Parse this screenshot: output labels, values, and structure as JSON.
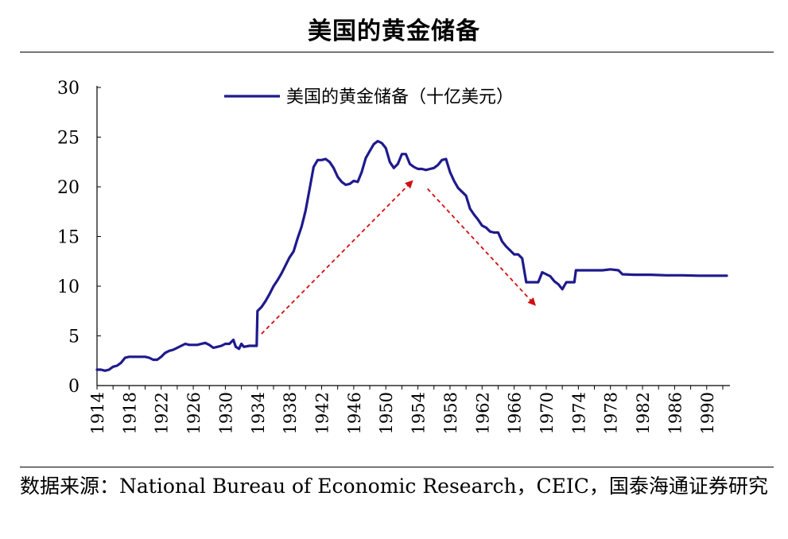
{
  "title": "美国的黄金储备",
  "source": "数据来源：National Bureau of Economic Research，CEIC，国泰海通证券研究",
  "chart_data": {
    "type": "line",
    "title": "美国的黄金储备",
    "xlabel": "",
    "ylabel": "",
    "xlim": [
      1914,
      1992.5
    ],
    "ylim": [
      0,
      30
    ],
    "y_ticks": [
      "0",
      "5",
      "10",
      "15",
      "20",
      "25",
      "30"
    ],
    "x_ticks": [
      "1914",
      "1918",
      "1922",
      "1926",
      "1930",
      "1934",
      "1938",
      "1942",
      "1946",
      "1950",
      "1954",
      "1958",
      "1962",
      "1966",
      "1970",
      "1974",
      "1978",
      "1982",
      "1986",
      "1990"
    ],
    "grid": false,
    "legend_position": "top-center",
    "colors": {
      "series": "#1f1a8c",
      "arrow": "#d01010"
    },
    "series": [
      {
        "name": "美国的黄金储备（十亿美元）",
        "points": [
          [
            1914,
            1.6
          ],
          [
            1914.5,
            1.6
          ],
          [
            1915,
            1.5
          ],
          [
            1915.5,
            1.6
          ],
          [
            1916,
            1.9
          ],
          [
            1916.5,
            2.0
          ],
          [
            1917,
            2.3
          ],
          [
            1917.5,
            2.8
          ],
          [
            1918,
            2.9
          ],
          [
            1919,
            2.9
          ],
          [
            1920,
            2.9
          ],
          [
            1920.5,
            2.8
          ],
          [
            1921,
            2.6
          ],
          [
            1921.5,
            2.6
          ],
          [
            1922,
            2.9
          ],
          [
            1922.5,
            3.3
          ],
          [
            1923,
            3.5
          ],
          [
            1923.5,
            3.6
          ],
          [
            1924,
            3.8
          ],
          [
            1924.5,
            4.0
          ],
          [
            1925,
            4.2
          ],
          [
            1925.5,
            4.1
          ],
          [
            1926,
            4.1
          ],
          [
            1926.5,
            4.1
          ],
          [
            1927,
            4.2
          ],
          [
            1927.5,
            4.3
          ],
          [
            1928,
            4.1
          ],
          [
            1928.5,
            3.8
          ],
          [
            1929,
            3.9
          ],
          [
            1929.5,
            4.0
          ],
          [
            1930,
            4.2
          ],
          [
            1930.5,
            4.2
          ],
          [
            1931,
            4.6
          ],
          [
            1931.3,
            3.9
          ],
          [
            1931.7,
            3.7
          ],
          [
            1932,
            4.2
          ],
          [
            1932.3,
            3.9
          ],
          [
            1933,
            4.0
          ],
          [
            1933.9,
            4.0
          ],
          [
            1934,
            7.5
          ],
          [
            1934.5,
            7.9
          ],
          [
            1935,
            8.5
          ],
          [
            1935.5,
            9.2
          ],
          [
            1936,
            10.0
          ],
          [
            1936.5,
            10.6
          ],
          [
            1937,
            11.3
          ],
          [
            1937.5,
            12.1
          ],
          [
            1938,
            12.9
          ],
          [
            1938.5,
            13.5
          ],
          [
            1939,
            14.8
          ],
          [
            1939.5,
            16.0
          ],
          [
            1940,
            17.6
          ],
          [
            1940.5,
            19.8
          ],
          [
            1941,
            22.0
          ],
          [
            1941.5,
            22.7
          ],
          [
            1942,
            22.7
          ],
          [
            1942.5,
            22.8
          ],
          [
            1943,
            22.5
          ],
          [
            1943.5,
            21.9
          ],
          [
            1944,
            21.0
          ],
          [
            1944.5,
            20.5
          ],
          [
            1945,
            20.2
          ],
          [
            1945.5,
            20.3
          ],
          [
            1946,
            20.6
          ],
          [
            1946.5,
            20.5
          ],
          [
            1947,
            21.5
          ],
          [
            1947.5,
            22.9
          ],
          [
            1948,
            23.6
          ],
          [
            1948.5,
            24.3
          ],
          [
            1949,
            24.6
          ],
          [
            1949.5,
            24.4
          ],
          [
            1950,
            23.9
          ],
          [
            1950.5,
            22.5
          ],
          [
            1951,
            21.9
          ],
          [
            1951.5,
            22.3
          ],
          [
            1952,
            23.3
          ],
          [
            1952.5,
            23.3
          ],
          [
            1953,
            22.3
          ],
          [
            1953.5,
            22.0
          ],
          [
            1954,
            21.8
          ],
          [
            1954.5,
            21.8
          ],
          [
            1955,
            21.7
          ],
          [
            1955.5,
            21.8
          ],
          [
            1956,
            21.9
          ],
          [
            1956.5,
            22.2
          ],
          [
            1957,
            22.7
          ],
          [
            1957.5,
            22.8
          ],
          [
            1958,
            21.5
          ],
          [
            1958.5,
            20.6
          ],
          [
            1959,
            19.9
          ],
          [
            1959.5,
            19.5
          ],
          [
            1960,
            19.1
          ],
          [
            1960.5,
            17.8
          ],
          [
            1961,
            17.2
          ],
          [
            1961.5,
            16.7
          ],
          [
            1962,
            16.1
          ],
          [
            1962.5,
            15.9
          ],
          [
            1963,
            15.5
          ],
          [
            1963.5,
            15.4
          ],
          [
            1964,
            15.4
          ],
          [
            1964.5,
            14.5
          ],
          [
            1965,
            14.0
          ],
          [
            1965.5,
            13.6
          ],
          [
            1966,
            13.2
          ],
          [
            1966.5,
            13.2
          ],
          [
            1967,
            12.8
          ],
          [
            1967.5,
            10.4
          ],
          [
            1968,
            10.4
          ],
          [
            1969,
            10.4
          ],
          [
            1969.5,
            11.4
          ],
          [
            1970,
            11.2
          ],
          [
            1970.5,
            11.0
          ],
          [
            1971,
            10.5
          ],
          [
            1971.5,
            10.2
          ],
          [
            1972,
            9.7
          ],
          [
            1972.5,
            10.4
          ],
          [
            1973,
            10.4
          ],
          [
            1973.5,
            10.4
          ],
          [
            1973.7,
            11.6
          ],
          [
            1975,
            11.6
          ],
          [
            1977,
            11.6
          ],
          [
            1978,
            11.7
          ],
          [
            1979,
            11.6
          ],
          [
            1979.5,
            11.2
          ],
          [
            1981,
            11.15
          ],
          [
            1983,
            11.15
          ],
          [
            1985,
            11.1
          ],
          [
            1987,
            11.1
          ],
          [
            1989,
            11.06
          ],
          [
            1992.5,
            11.06
          ]
        ]
      }
    ],
    "annotations": [
      {
        "type": "arrow",
        "from": [
          1934.5,
          5.2
        ],
        "to": [
          1953.2,
          20.5
        ]
      },
      {
        "type": "arrow",
        "from": [
          1955.2,
          19.8
        ],
        "to": [
          1968.5,
          8.2
        ]
      }
    ]
  }
}
